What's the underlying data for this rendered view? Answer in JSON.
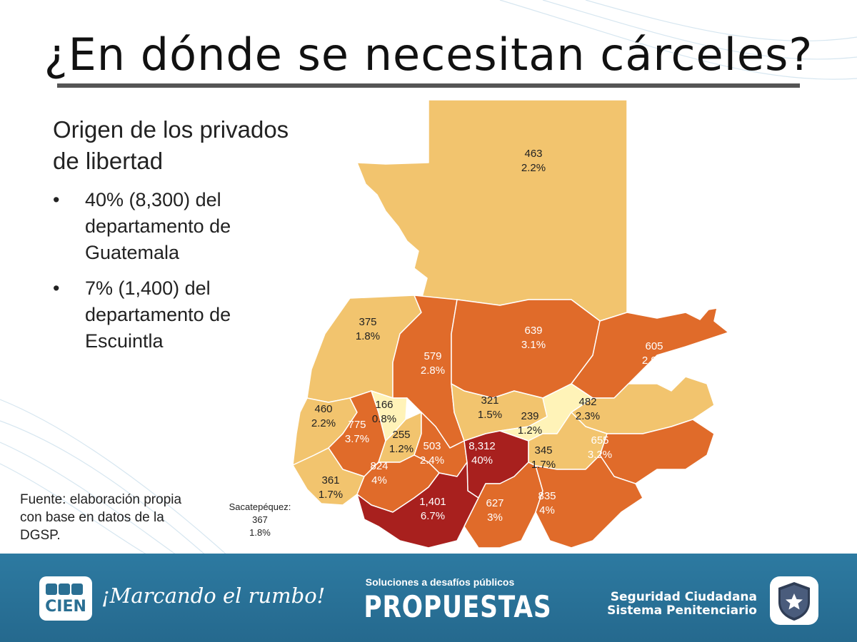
{
  "title": "¿En dónde se necesitan cárceles?",
  "subtitle": "Origen de los privados de libertad",
  "bullets": [
    "40% (8,300) del departamento de Guatemala",
    "7% (1,400) del departamento de Escuintla"
  ],
  "bullet_symbol": "•",
  "source": "Fuente: elaboración propia con base en datos de la DGSP.",
  "sacatepequez_note": {
    "name": "Sacatepéquez:",
    "count": "367",
    "pct": "1.8%"
  },
  "departments": [
    {
      "count": "463",
      "pct": "2.2%",
      "color": "#f2c46e",
      "text": "#222222"
    },
    {
      "count": "375",
      "pct": "1.8%",
      "color": "#f2c46e",
      "text": "#222222"
    },
    {
      "count": "579",
      "pct": "2.8%",
      "color": "#e06b2a",
      "text": "#ffffff"
    },
    {
      "count": "639",
      "pct": "3.1%",
      "color": "#e06b2a",
      "text": "#ffffff"
    },
    {
      "count": "605",
      "pct": "2.9%",
      "color": "#e06b2a",
      "text": "#ffffff"
    },
    {
      "count": "460",
      "pct": "2.2%",
      "color": "#f2c46e",
      "text": "#222222"
    },
    {
      "count": "775",
      "pct": "3.7%",
      "color": "#e06b2a",
      "text": "#ffffff"
    },
    {
      "count": "166",
      "pct": "0.8%",
      "color": "#fff3b8",
      "text": "#222222"
    },
    {
      "count": "255",
      "pct": "1.2%",
      "color": "#f2c46e",
      "text": "#222222"
    },
    {
      "count": "321",
      "pct": "1.5%",
      "color": "#f2c46e",
      "text": "#222222"
    },
    {
      "count": "239",
      "pct": "1.2%",
      "color": "#fff3b8",
      "text": "#222222"
    },
    {
      "count": "482",
      "pct": "2.3%",
      "color": "#f2c46e",
      "text": "#222222"
    },
    {
      "count": "503",
      "pct": "2.4%",
      "color": "#e06b2a",
      "text": "#ffffff"
    },
    {
      "count": "8,312",
      "pct": "40%",
      "color": "#a8201e",
      "text": "#ffffff"
    },
    {
      "count": "345",
      "pct": "1.7%",
      "color": "#f2c46e",
      "text": "#222222"
    },
    {
      "count": "655",
      "pct": "3.2%",
      "color": "#e06b2a",
      "text": "#ffffff"
    },
    {
      "count": "824",
      "pct": "4%",
      "color": "#e06b2a",
      "text": "#ffffff"
    },
    {
      "count": "361",
      "pct": "1.7%",
      "color": "#f2c46e",
      "text": "#222222"
    },
    {
      "count": "1,401",
      "pct": "6.7%",
      "color": "#a8201e",
      "text": "#ffffff"
    },
    {
      "count": "627",
      "pct": "3%",
      "color": "#e06b2a",
      "text": "#ffffff"
    },
    {
      "count": "835",
      "pct": "4%",
      "color": "#e06b2a",
      "text": "#ffffff"
    }
  ],
  "footer": {
    "cien_logo": "CIEN",
    "slogan": "¡Marcando el rumbo!",
    "tagline": "Soluciones a desafíos públicos",
    "program": "PROPUESTAS",
    "line1": "Seguridad Ciudadana",
    "line2": "Sistema Penitenciario",
    "badge_icon": "star-shield-icon"
  },
  "colors": {
    "footer": "#2a7098",
    "low": "#fff3b8",
    "mid": "#f2c46e",
    "high": "#e06b2a",
    "top": "#a8201e"
  }
}
